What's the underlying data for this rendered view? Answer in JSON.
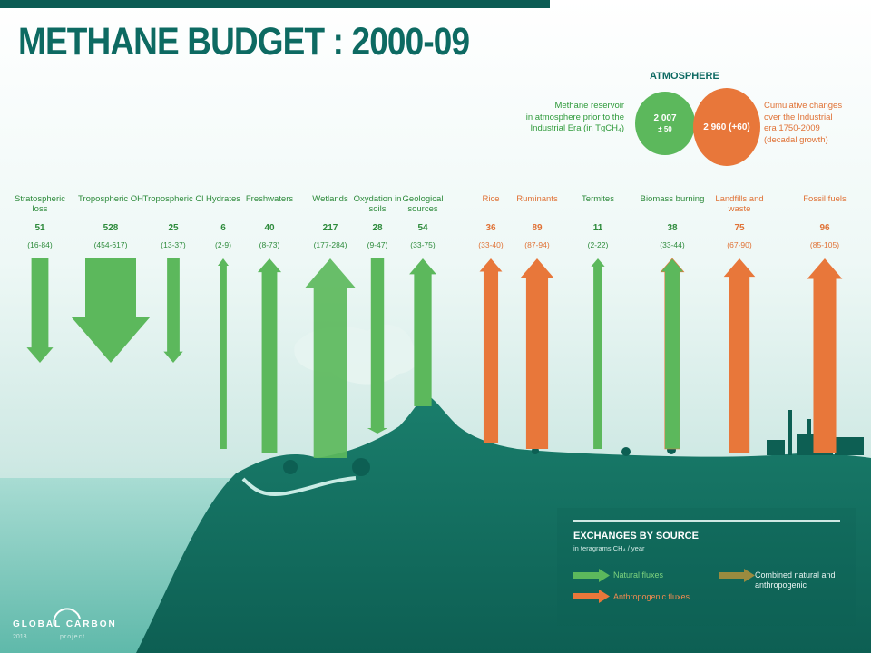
{
  "title": "METHANE BUDGET : 2000-09",
  "atmosphere": {
    "heading": "ATMOSPHERE",
    "reservoir_note_lines": [
      "Methane reservoir",
      "in atmosphere prior to the",
      "Industrial Era (in TgCH₄)"
    ],
    "reservoir_value": "2 007",
    "reservoir_uncertainty": "± 50",
    "current_value": "2 960 (+60)",
    "change_note_lines": [
      "Cumulative changes",
      "over the Industrial",
      "era 1750-2009",
      "(decadal growth)"
    ]
  },
  "fluxes": [
    {
      "label": "Stratospheric loss",
      "value": 51,
      "range": "(16-84)",
      "kind": "natural",
      "dir": "down"
    },
    {
      "label": "Tropospheric OH",
      "value": 528,
      "range": "(454-617)",
      "kind": "natural",
      "dir": "down"
    },
    {
      "label": "Tropospheric Cl",
      "value": 25,
      "range": "(13-37)",
      "kind": "natural",
      "dir": "down"
    },
    {
      "label": "Hydrates",
      "value": 6,
      "range": "(2-9)",
      "kind": "natural",
      "dir": "up"
    },
    {
      "label": "Freshwaters",
      "value": 40,
      "range": "(8-73)",
      "kind": "natural",
      "dir": "up"
    },
    {
      "label": "Wetlands",
      "value": 217,
      "range": "(177-284)",
      "kind": "natural",
      "dir": "up"
    },
    {
      "label": "Oxydation in soils",
      "value": 28,
      "range": "(9-47)",
      "kind": "natural",
      "dir": "down"
    },
    {
      "label": "Geological sources",
      "value": 54,
      "range": "(33-75)",
      "kind": "natural",
      "dir": "up"
    },
    {
      "label": "Rice",
      "value": 36,
      "range": "(33-40)",
      "kind": "anthropogenic",
      "dir": "up"
    },
    {
      "label": "Ruminants",
      "value": 89,
      "range": "(87-94)",
      "kind": "anthropogenic",
      "dir": "up"
    },
    {
      "label": "Termites",
      "value": 11,
      "range": "(2-22)",
      "kind": "natural",
      "dir": "up"
    },
    {
      "label": "Biomass burning",
      "value": 38,
      "range": "(33-44)",
      "kind": "combined",
      "dir": "up"
    },
    {
      "label": "Landfills and waste",
      "value": 75,
      "range": "(67-90)",
      "kind": "anthropogenic",
      "dir": "up"
    },
    {
      "label": "Fossil fuels",
      "value": 96,
      "range": "(85-105)",
      "kind": "anthropogenic",
      "dir": "up"
    }
  ],
  "legend": {
    "title": "EXCHANGES BY SOURCE",
    "subtitle": "in teragrams CH₄ / year",
    "natural": "Natural fluxes",
    "anthropogenic": "Anthropogenic fluxes",
    "combined": "Combined natural and anthropogenic"
  },
  "logo": {
    "text": "GLOBAL CARBON",
    "year": "2013",
    "project": "project"
  },
  "colors": {
    "natural": "#5cb85c",
    "anthropogenic": "#e8773a",
    "title": "#0d6a62",
    "land": "#0f6b5e",
    "sea": "#8fd1c6"
  }
}
